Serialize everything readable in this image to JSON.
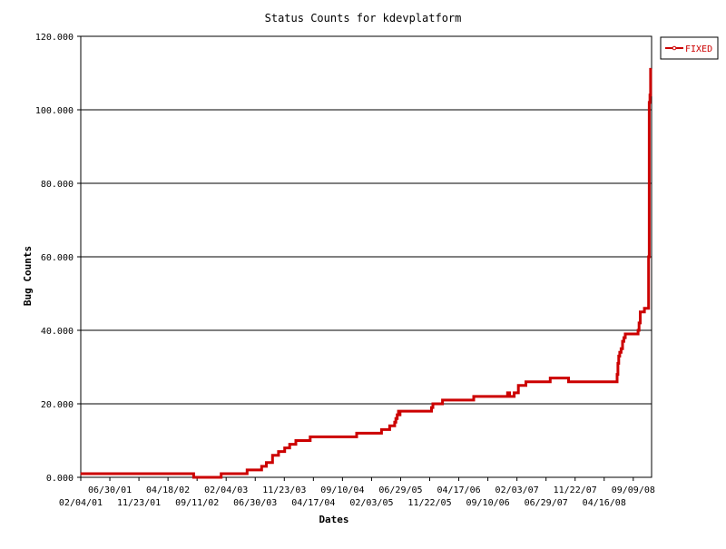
{
  "chart_data": {
    "type": "line",
    "title": "Status Counts for kdevplatform",
    "xlabel": "Dates",
    "ylabel": "Bug Counts",
    "ylim": [
      0,
      120
    ],
    "y_ticks": [
      0,
      20,
      40,
      60,
      80,
      100,
      120
    ],
    "y_tick_labels": [
      "0.000",
      "20.000",
      "40.000",
      "60.000",
      "80.000",
      "100.000",
      "120.000"
    ],
    "xlim": [
      "2001-02-04",
      "2008-12-10"
    ],
    "x_ticks": [
      "2001-02-04",
      "2001-06-30",
      "2001-11-23",
      "2002-04-18",
      "2002-09-11",
      "2003-02-04",
      "2003-06-30",
      "2003-11-23",
      "2004-04-17",
      "2004-09-10",
      "2005-02-03",
      "2005-06-29",
      "2005-11-22",
      "2006-04-17",
      "2006-09-10",
      "2007-02-03",
      "2007-06-29",
      "2007-11-22",
      "2008-04-16",
      "2008-09-09"
    ],
    "x_tick_labels": [
      "02/04/01",
      "06/30/01",
      "11/23/01",
      "04/18/02",
      "09/11/02",
      "02/04/03",
      "06/30/03",
      "11/23/03",
      "04/17/04",
      "09/10/04",
      "02/03/05",
      "06/29/05",
      "11/22/05",
      "04/17/06",
      "09/10/06",
      "02/03/07",
      "06/29/07",
      "11/22/07",
      "04/16/08",
      "09/09/08"
    ],
    "grid": true,
    "legend_position": "top-right",
    "series": [
      {
        "name": "FIXED",
        "color": "#cc0000",
        "step": true,
        "x": [
          "2001-02-04",
          "2002-08-25",
          "2003-01-10",
          "2003-05-20",
          "2003-08-01",
          "2003-08-25",
          "2003-09-25",
          "2003-10-25",
          "2003-11-25",
          "2003-12-20",
          "2004-01-20",
          "2004-04-01",
          "2004-11-20",
          "2005-03-25",
          "2005-05-05",
          "2005-05-30",
          "2005-06-05",
          "2005-06-12",
          "2005-06-18",
          "2005-06-22",
          "2005-06-26",
          "2005-07-02",
          "2005-07-08",
          "2005-07-14",
          "2005-07-22",
          "2005-12-01",
          "2005-12-08",
          "2006-01-25",
          "2006-07-01",
          "2006-12-18",
          "2006-12-28",
          "2007-01-20",
          "2007-02-10",
          "2007-03-20",
          "2007-07-20",
          "2007-10-20",
          "2008-06-20",
          "2008-06-24",
          "2008-06-28",
          "2008-07-03",
          "2008-07-10",
          "2008-07-17",
          "2008-07-24",
          "2008-07-31",
          "2008-10-03",
          "2008-10-08",
          "2008-10-14",
          "2008-11-04",
          "2008-11-25",
          "2008-11-28",
          "2008-12-02",
          "2008-12-05",
          "2008-12-10"
        ],
        "values": [
          1,
          0,
          1,
          2,
          3,
          4,
          6,
          7,
          8,
          9,
          10,
          11,
          12,
          13,
          14,
          15,
          16,
          17,
          18,
          17,
          18,
          18,
          18,
          18,
          18,
          19,
          20,
          21,
          22,
          23,
          22,
          23,
          25,
          26,
          27,
          26,
          28,
          31,
          33,
          34,
          35,
          37,
          38,
          39,
          40,
          42,
          45,
          46,
          60,
          102,
          104,
          111,
          111
        ]
      }
    ]
  }
}
